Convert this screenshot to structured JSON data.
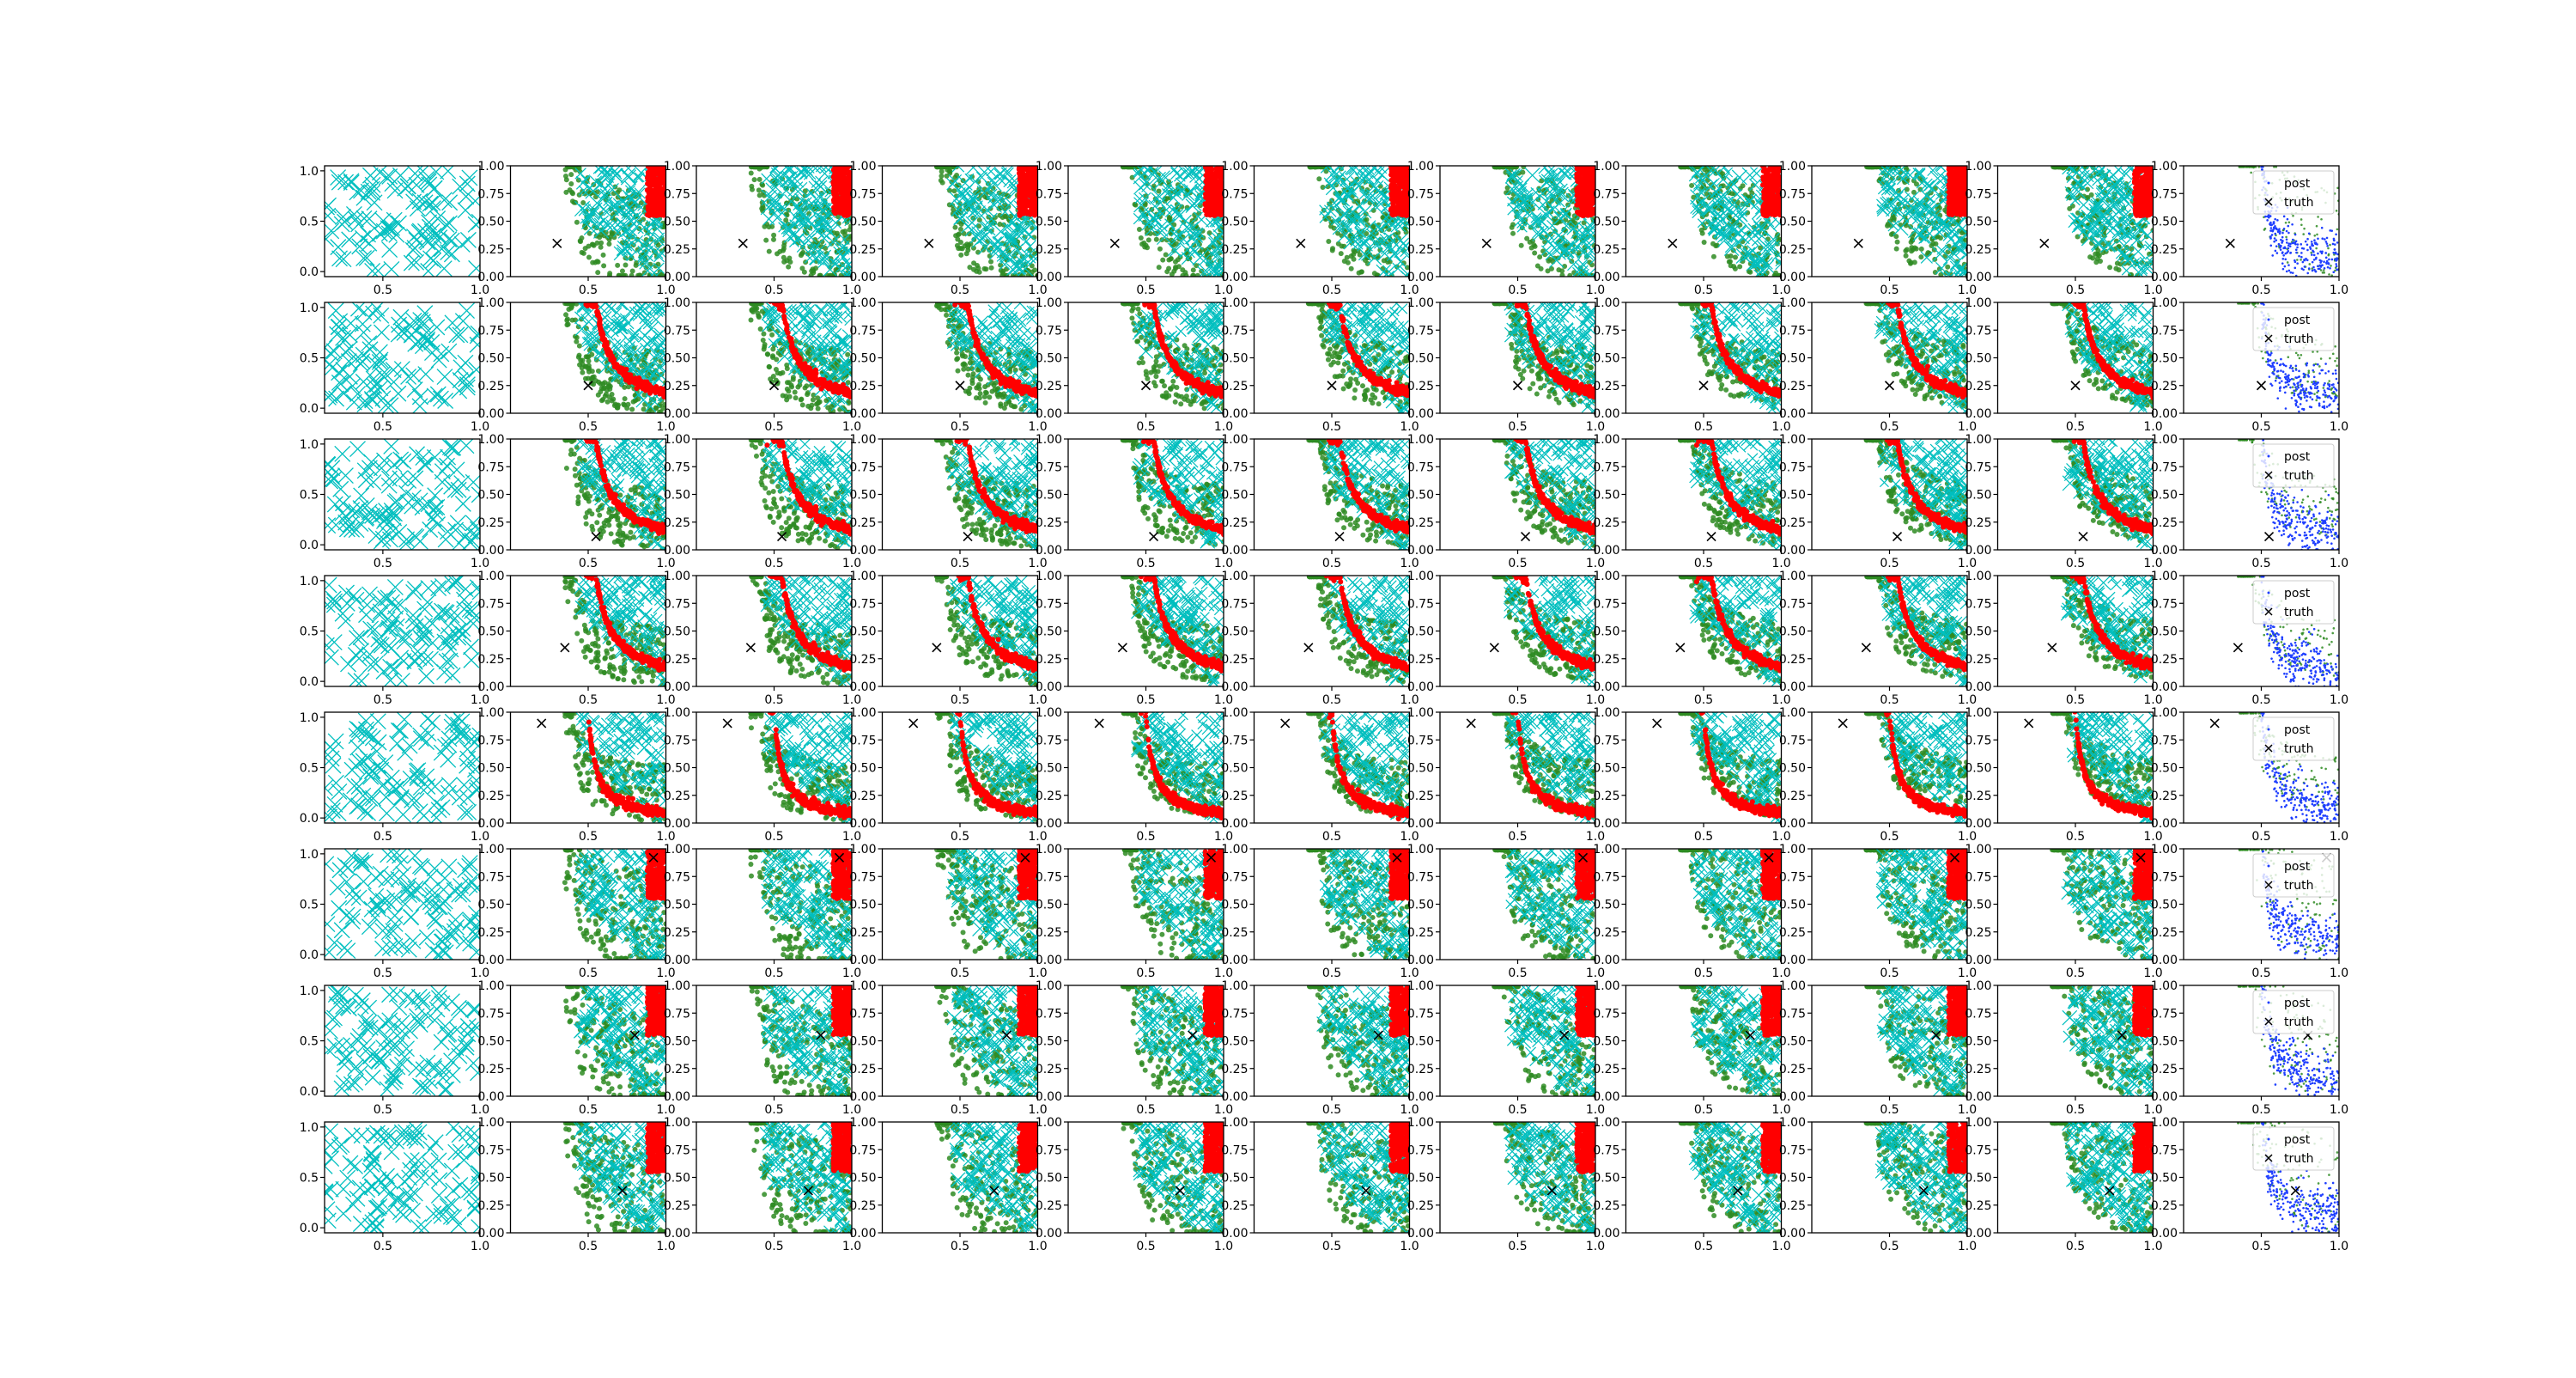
{
  "figure": {
    "rows": 8,
    "cols": 11,
    "background": "#ffffff"
  },
  "colors": {
    "samples_x": "#00bfbf",
    "samples_dot": "#2e8b22",
    "highlight": "#ff0000",
    "posterior": "#1f3fff",
    "truth": "#000000"
  },
  "legend": {
    "post": "post",
    "truth": "truth"
  },
  "chart_data": {
    "type": "scatter",
    "layout": "grid of 8 rows x 11 columns of scatter panels",
    "first_column": {
      "xlim": [
        0.2,
        1.0
      ],
      "ylim": [
        -0.05,
        1.05
      ],
      "xticks": [
        0.5,
        1.0
      ],
      "xtick_labels": [
        "0.5",
        "1.0"
      ],
      "yticks": [
        0.0,
        0.5,
        1.0
      ],
      "ytick_labels": [
        "0.0",
        "0.5",
        "1.0"
      ],
      "series": [
        {
          "marker": "x",
          "color": "samples_x"
        }
      ]
    },
    "other_columns": {
      "xlim": [
        0.0,
        1.0
      ],
      "ylim": [
        0.0,
        1.0
      ],
      "xticks": [
        0.5,
        1.0
      ],
      "xtick_labels": [
        "0.5",
        "1.0"
      ],
      "yticks": [
        0.0,
        0.25,
        0.5,
        0.75,
        1.0
      ],
      "ytick_labels": [
        "0.00",
        "0.25",
        "0.50",
        "0.75",
        "1.00"
      ],
      "series": [
        {
          "marker": "dot",
          "color": "samples_dot"
        },
        {
          "marker": "x",
          "color": "samples_x"
        },
        {
          "marker": "dot",
          "color": "highlight"
        }
      ]
    },
    "last_column": {
      "series": [
        {
          "name": "post",
          "marker": "dot",
          "color": "posterior"
        },
        {
          "name": "truth",
          "marker": "x",
          "color": "truth"
        }
      ],
      "legend_position": "upper-right"
    },
    "truth_points": [
      [
        0.3,
        0.3
      ],
      [
        0.5,
        0.25
      ],
      [
        0.55,
        0.12
      ],
      [
        0.35,
        0.35
      ],
      [
        0.2,
        0.9
      ],
      [
        0.92,
        0.92
      ],
      [
        0.8,
        0.55
      ],
      [
        0.72,
        0.38
      ]
    ],
    "row_spread": [
      0.45,
      0.18,
      0.18,
      0.14,
      0.12,
      0.5,
      0.48,
      0.5
    ]
  }
}
